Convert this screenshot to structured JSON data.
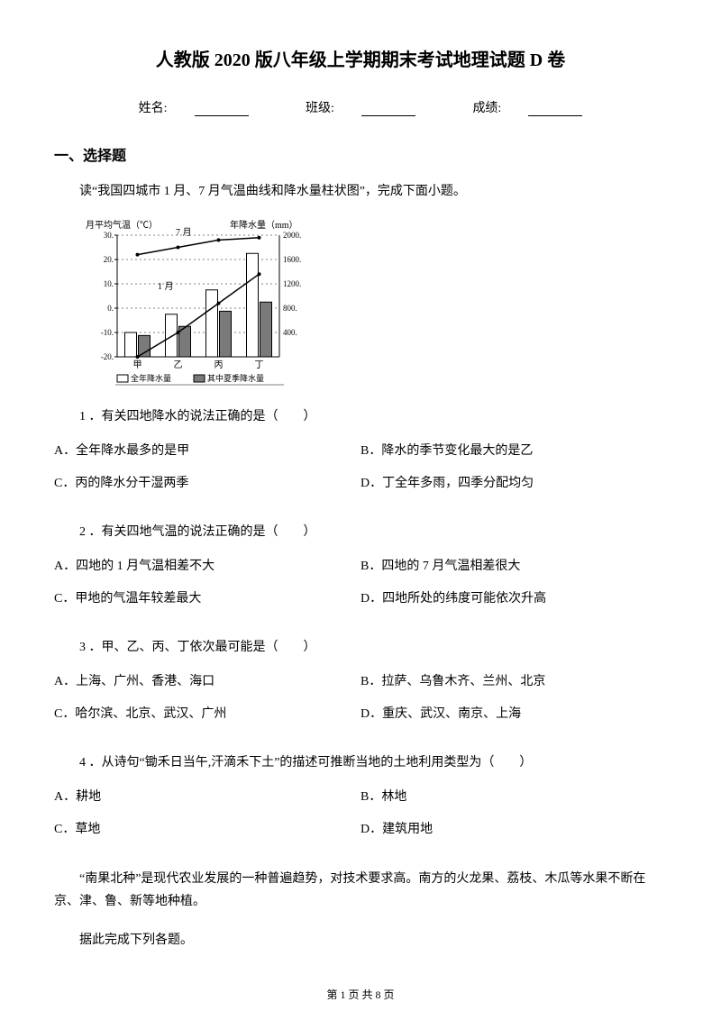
{
  "title": "人教版 2020 版八年级上学期期末考试地理试题 D 卷",
  "info": {
    "name_label": "姓名:",
    "class_label": "班级:",
    "score_label": "成绩:"
  },
  "section1_header": "一、选择题",
  "intro": "读“我国四城市 1 月、7 月气温曲线和降水量柱状图”，完成下面小题。",
  "chart": {
    "left_axis_label": "月平均气温（℃）",
    "right_axis_label": "年降水量（mm）",
    "month_7": "7 月",
    "month_1": "1 月",
    "left_ticks": [
      "30",
      "20",
      "10",
      "0",
      "-10",
      "-20"
    ],
    "right_ticks": [
      "2000",
      "1600",
      "1200",
      "800",
      "400"
    ],
    "categories": [
      "甲",
      "乙",
      "丙",
      "丁"
    ],
    "legend_annual": "全年降水量",
    "legend_summer": "其中夏季降水量",
    "annual_values": [
      400,
      700,
      1100,
      1700
    ],
    "summer_values": [
      350,
      500,
      750,
      900
    ],
    "july_temp": [
      22,
      25,
      28,
      29
    ],
    "jan_temp": [
      -20,
      -10,
      2,
      14
    ],
    "bar_border": "#000000",
    "bar_fill_annual": "#ffffff",
    "bar_fill_summer": "#7a7a7a",
    "line_color": "#000000",
    "text_color": "#000000"
  },
  "q1": {
    "text": "1 ．有关四地降水的说法正确的是（　　）",
    "A": "A．全年降水最多的是甲",
    "B": "B．降水的季节变化最大的是乙",
    "C": "C．丙的降水分干湿两季",
    "D": "D．丁全年多雨，四季分配均匀"
  },
  "q2": {
    "text": "2 ．有关四地气温的说法正确的是（　　）",
    "A": "A．四地的 1 月气温相差不大",
    "B": "B．四地的 7 月气温相差很大",
    "C": "C．甲地的气温年较差最大",
    "D": "D．四地所处的纬度可能依次升高"
  },
  "q3": {
    "text": "3 ．甲、乙、丙、丁依次最可能是（　　）",
    "A": "A．上海、广州、香港、海口",
    "B": "B．拉萨、乌鲁木齐、兰州、北京",
    "C": "C．哈尔滨、北京、武汉、广州",
    "D": "D．重庆、武汉、南京、上海"
  },
  "q4": {
    "text": "4 ．从诗句“锄禾日当午,汗滴禾下土”的描述可推断当地的土地利用类型为（　　）",
    "A": "A．耕地",
    "B": "B．林地",
    "C": "C．草地",
    "D": "D．建筑用地"
  },
  "para1": "“南果北种”是现代农业发展的一种普遍趋势，对技术要求高。南方的火龙果、荔枝、木瓜等水果不断在京、津、鲁、新等地种植。",
  "para2": "据此完成下列各题。",
  "footer": "第 1 页 共 8 页"
}
